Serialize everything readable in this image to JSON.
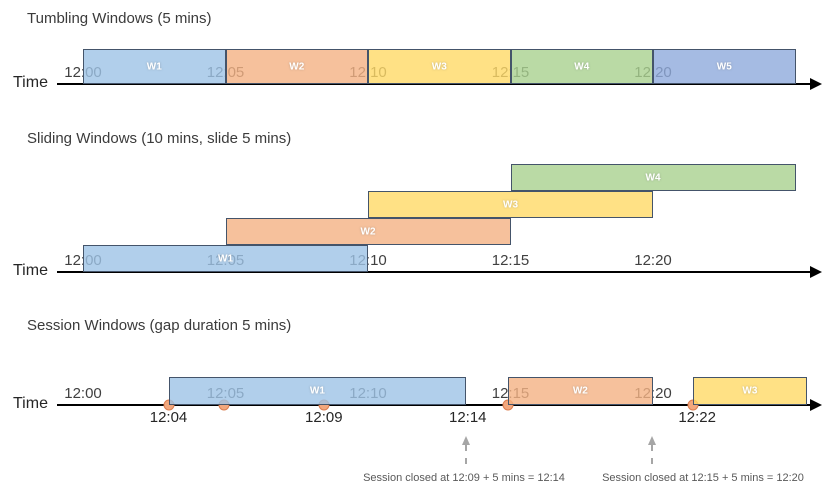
{
  "colors": {
    "blue": "rgba(157,195,230,0.8)",
    "orange": "rgba(244,177,131,0.8)",
    "yellow": "rgba(255,217,102,0.8)",
    "green": "rgba(169,209,142,0.8)",
    "periwinkle": "rgba(143,170,220,0.8)",
    "window_border": "#44546A",
    "event_dot_fill": "#F2A77D",
    "event_dot_border": "#DC7E50",
    "callout_arrow": "#A6A6A6",
    "timeline": "#000000"
  },
  "axis": {
    "label": "Time",
    "ticks": [
      {
        "label": "12:00",
        "min": 0
      },
      {
        "label": "12:05",
        "min": 5
      },
      {
        "label": "12:10",
        "min": 10
      },
      {
        "label": "12:15",
        "min": 15
      },
      {
        "label": "12:20",
        "min": 20
      }
    ]
  },
  "diagrams": [
    {
      "id": "tumbling",
      "title": "Tumbling Windows (5 mins)",
      "windows": [
        {
          "label": "W1",
          "color": "blue",
          "start_min": 0,
          "end_min": 5,
          "level": 0
        },
        {
          "label": "W2",
          "color": "orange",
          "start_min": 5,
          "end_min": 10,
          "level": 0
        },
        {
          "label": "W3",
          "color": "yellow",
          "start_min": 10,
          "end_min": 15,
          "level": 0
        },
        {
          "label": "W4",
          "color": "green",
          "start_min": 15,
          "end_min": 20,
          "level": 0
        },
        {
          "label": "W5",
          "color": "periwinkle",
          "start_min": 20,
          "end_min": 25,
          "level": 0
        }
      ]
    },
    {
      "id": "sliding",
      "title": "Sliding Windows (10 mins, slide 5 mins)",
      "windows": [
        {
          "label": "W1",
          "color": "blue",
          "start_min": 0,
          "end_min": 10,
          "level": 0
        },
        {
          "label": "W2",
          "color": "orange",
          "start_min": 5,
          "end_min": 15,
          "level": 1
        },
        {
          "label": "W3",
          "color": "yellow",
          "start_min": 10,
          "end_min": 20,
          "level": 2
        },
        {
          "label": "W4",
          "color": "green",
          "start_min": 15,
          "end_min": 25,
          "level": 3
        }
      ]
    },
    {
      "id": "session",
      "title": "Session Windows (gap duration 5 mins)",
      "windows": [
        {
          "label": "W1",
          "color": "blue",
          "start_min": 3.0,
          "end_min": 13.45,
          "level": 0
        },
        {
          "label": "W2",
          "color": "orange",
          "start_min": 14.9,
          "end_min": 20.0,
          "level": 0
        },
        {
          "label": "W3",
          "color": "yellow",
          "start_min": 21.4,
          "end_min": 25.4,
          "level": 0
        }
      ],
      "events": [
        {
          "min": 3.0
        },
        {
          "min": 4.95
        },
        {
          "min": 8.45
        },
        {
          "min": 14.9
        },
        {
          "min": 21.4
        }
      ],
      "event_labels": [
        {
          "text": "12:04",
          "min": 3.0
        },
        {
          "text": "12:09",
          "min": 8.45
        },
        {
          "text": "12:14",
          "min": 13.5
        },
        {
          "text": "12:22",
          "min": 21.55
        }
      ],
      "callouts": [
        {
          "text": "Session closed at 12:09 + 5 mins = 12:14",
          "arrow_min": 13.45
        },
        {
          "text": "Session closed at 12:15 + 5 mins = 12:20",
          "arrow_min": 19.96
        }
      ]
    }
  ]
}
